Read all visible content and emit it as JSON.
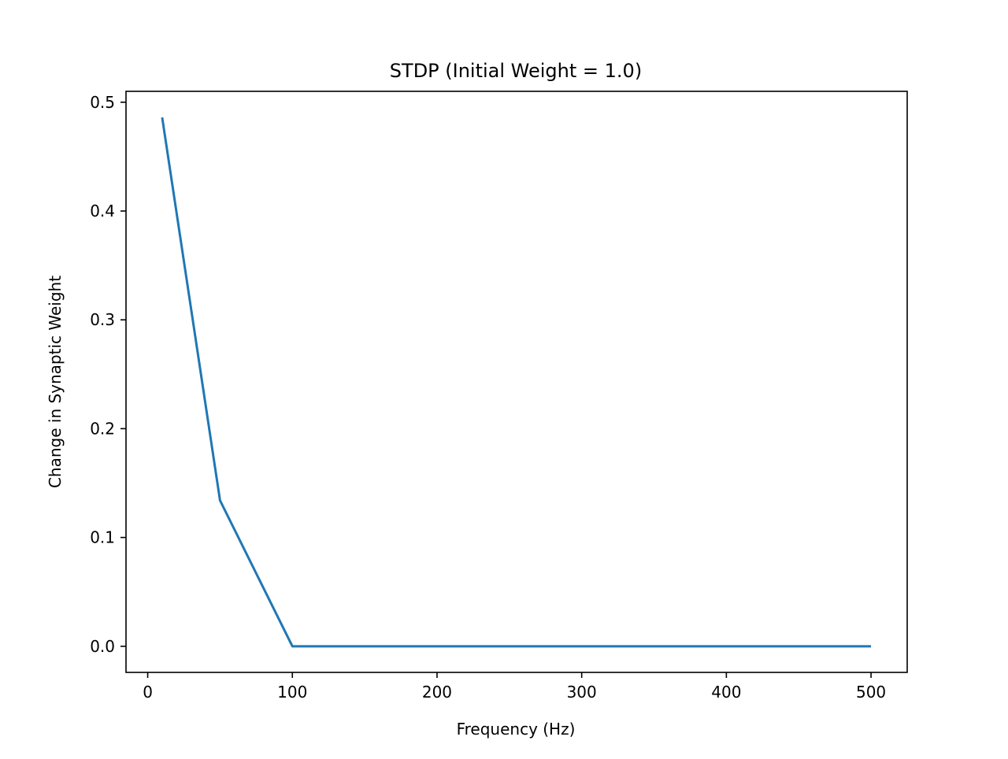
{
  "chart_data": {
    "type": "line",
    "title": "STDP (Initial Weight = 1.0)",
    "xlabel": "Frequency (Hz)",
    "ylabel": "Change in Synaptic Weight",
    "xlim": [
      -15,
      525
    ],
    "ylim": [
      -0.024,
      0.51
    ],
    "xticks": [
      0,
      100,
      200,
      300,
      400,
      500
    ],
    "xtick_labels": [
      "0",
      "100",
      "200",
      "300",
      "400",
      "500"
    ],
    "yticks": [
      0.0,
      0.1,
      0.2,
      0.3,
      0.4,
      0.5
    ],
    "ytick_labels": [
      "0.0",
      "0.1",
      "0.2",
      "0.3",
      "0.4",
      "0.5"
    ],
    "grid": false,
    "series": [
      {
        "color": "#1f77b4",
        "x": [
          10,
          50,
          100,
          200,
          300,
          400,
          500
        ],
        "y": [
          0.486,
          0.134,
          0.0,
          0.0,
          0.0,
          0.0,
          0.0
        ]
      }
    ]
  }
}
